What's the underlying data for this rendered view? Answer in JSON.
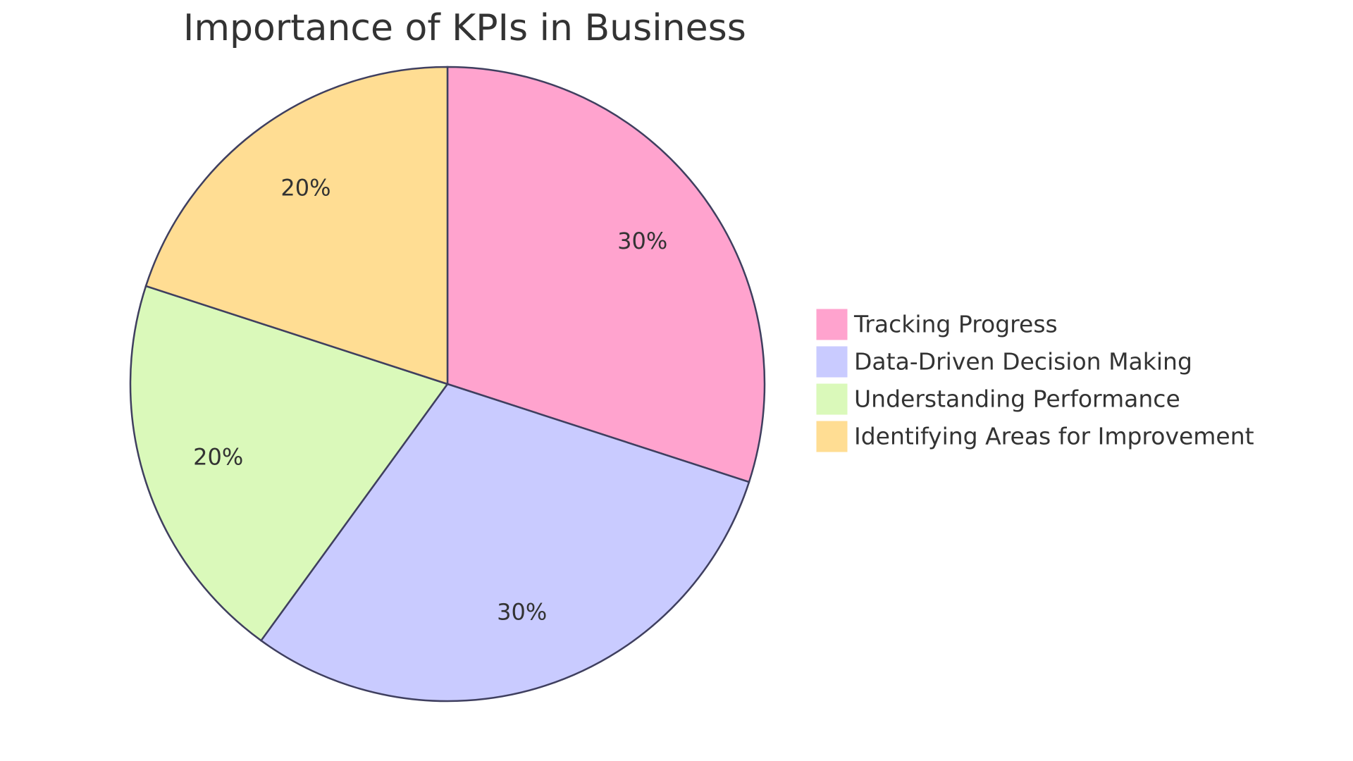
{
  "chart_data": {
    "type": "pie",
    "title": "Importance of KPIs in Business",
    "categories": [
      "Tracking Progress",
      "Data-Driven Decision Making",
      "Understanding Performance",
      "Identifying Areas for Improvement"
    ],
    "values": [
      30,
      30,
      20,
      20
    ],
    "value_labels": [
      "30%",
      "30%",
      "20%",
      "20%"
    ],
    "colors": [
      "#ffa3ce",
      "#c9cbff",
      "#daf9ba",
      "#ffdd93"
    ],
    "legend": "right"
  }
}
